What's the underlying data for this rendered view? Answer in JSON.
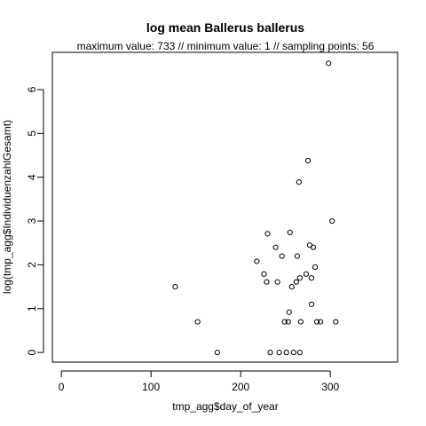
{
  "chart_data": {
    "type": "scatter",
    "title": "log mean Ballerus ballerus",
    "subtitle": "maximum value: 733  //  minimum value: 1  // sampling points: 56",
    "xlabel": "tmp_agg$day_of_year",
    "ylabel": "log(tmp_agg$IndividuenzahlGesamt)",
    "xlim": [
      -10,
      375
    ],
    "ylim": [
      -0.22,
      6.85
    ],
    "xticks": [
      0,
      100,
      200,
      300
    ],
    "yticks": [
      0,
      1,
      2,
      3,
      4,
      5,
      6
    ],
    "xtick_labels": [
      "0",
      "100",
      "200",
      "300"
    ],
    "ytick_labels": [
      "0",
      "1",
      "2",
      "3",
      "4",
      "5",
      "6"
    ],
    "grid": false,
    "legend": "none",
    "colors": {
      "points": "#000000",
      "axes": "#000000"
    },
    "points": [
      {
        "x": 127,
        "y": 1.5
      },
      {
        "x": 152,
        "y": 0.7
      },
      {
        "x": 174,
        "y": 0.0
      },
      {
        "x": 218,
        "y": 2.08
      },
      {
        "x": 226,
        "y": 1.79
      },
      {
        "x": 229,
        "y": 1.61
      },
      {
        "x": 230,
        "y": 2.71
      },
      {
        "x": 233,
        "y": 0.0
      },
      {
        "x": 239,
        "y": 2.4
      },
      {
        "x": 241,
        "y": 1.61
      },
      {
        "x": 243,
        "y": 0.0
      },
      {
        "x": 246,
        "y": 2.2
      },
      {
        "x": 249,
        "y": 0.7
      },
      {
        "x": 251,
        "y": 0.0
      },
      {
        "x": 253,
        "y": 0.7
      },
      {
        "x": 254,
        "y": 0.92
      },
      {
        "x": 255,
        "y": 2.74
      },
      {
        "x": 257,
        "y": 1.5
      },
      {
        "x": 259,
        "y": 0.0
      },
      {
        "x": 262,
        "y": 1.61
      },
      {
        "x": 263,
        "y": 2.2
      },
      {
        "x": 265,
        "y": 3.89
      },
      {
        "x": 266,
        "y": 0.0
      },
      {
        "x": 266,
        "y": 1.7
      },
      {
        "x": 267,
        "y": 0.7
      },
      {
        "x": 273,
        "y": 1.79
      },
      {
        "x": 275,
        "y": 4.38
      },
      {
        "x": 277,
        "y": 2.45
      },
      {
        "x": 279,
        "y": 1.1
      },
      {
        "x": 279,
        "y": 1.7
      },
      {
        "x": 281,
        "y": 2.4
      },
      {
        "x": 283,
        "y": 1.95
      },
      {
        "x": 285,
        "y": 0.7
      },
      {
        "x": 289,
        "y": 0.7
      },
      {
        "x": 298,
        "y": 6.6
      },
      {
        "x": 302,
        "y": 3.0
      },
      {
        "x": 306,
        "y": 0.7
      }
    ]
  }
}
